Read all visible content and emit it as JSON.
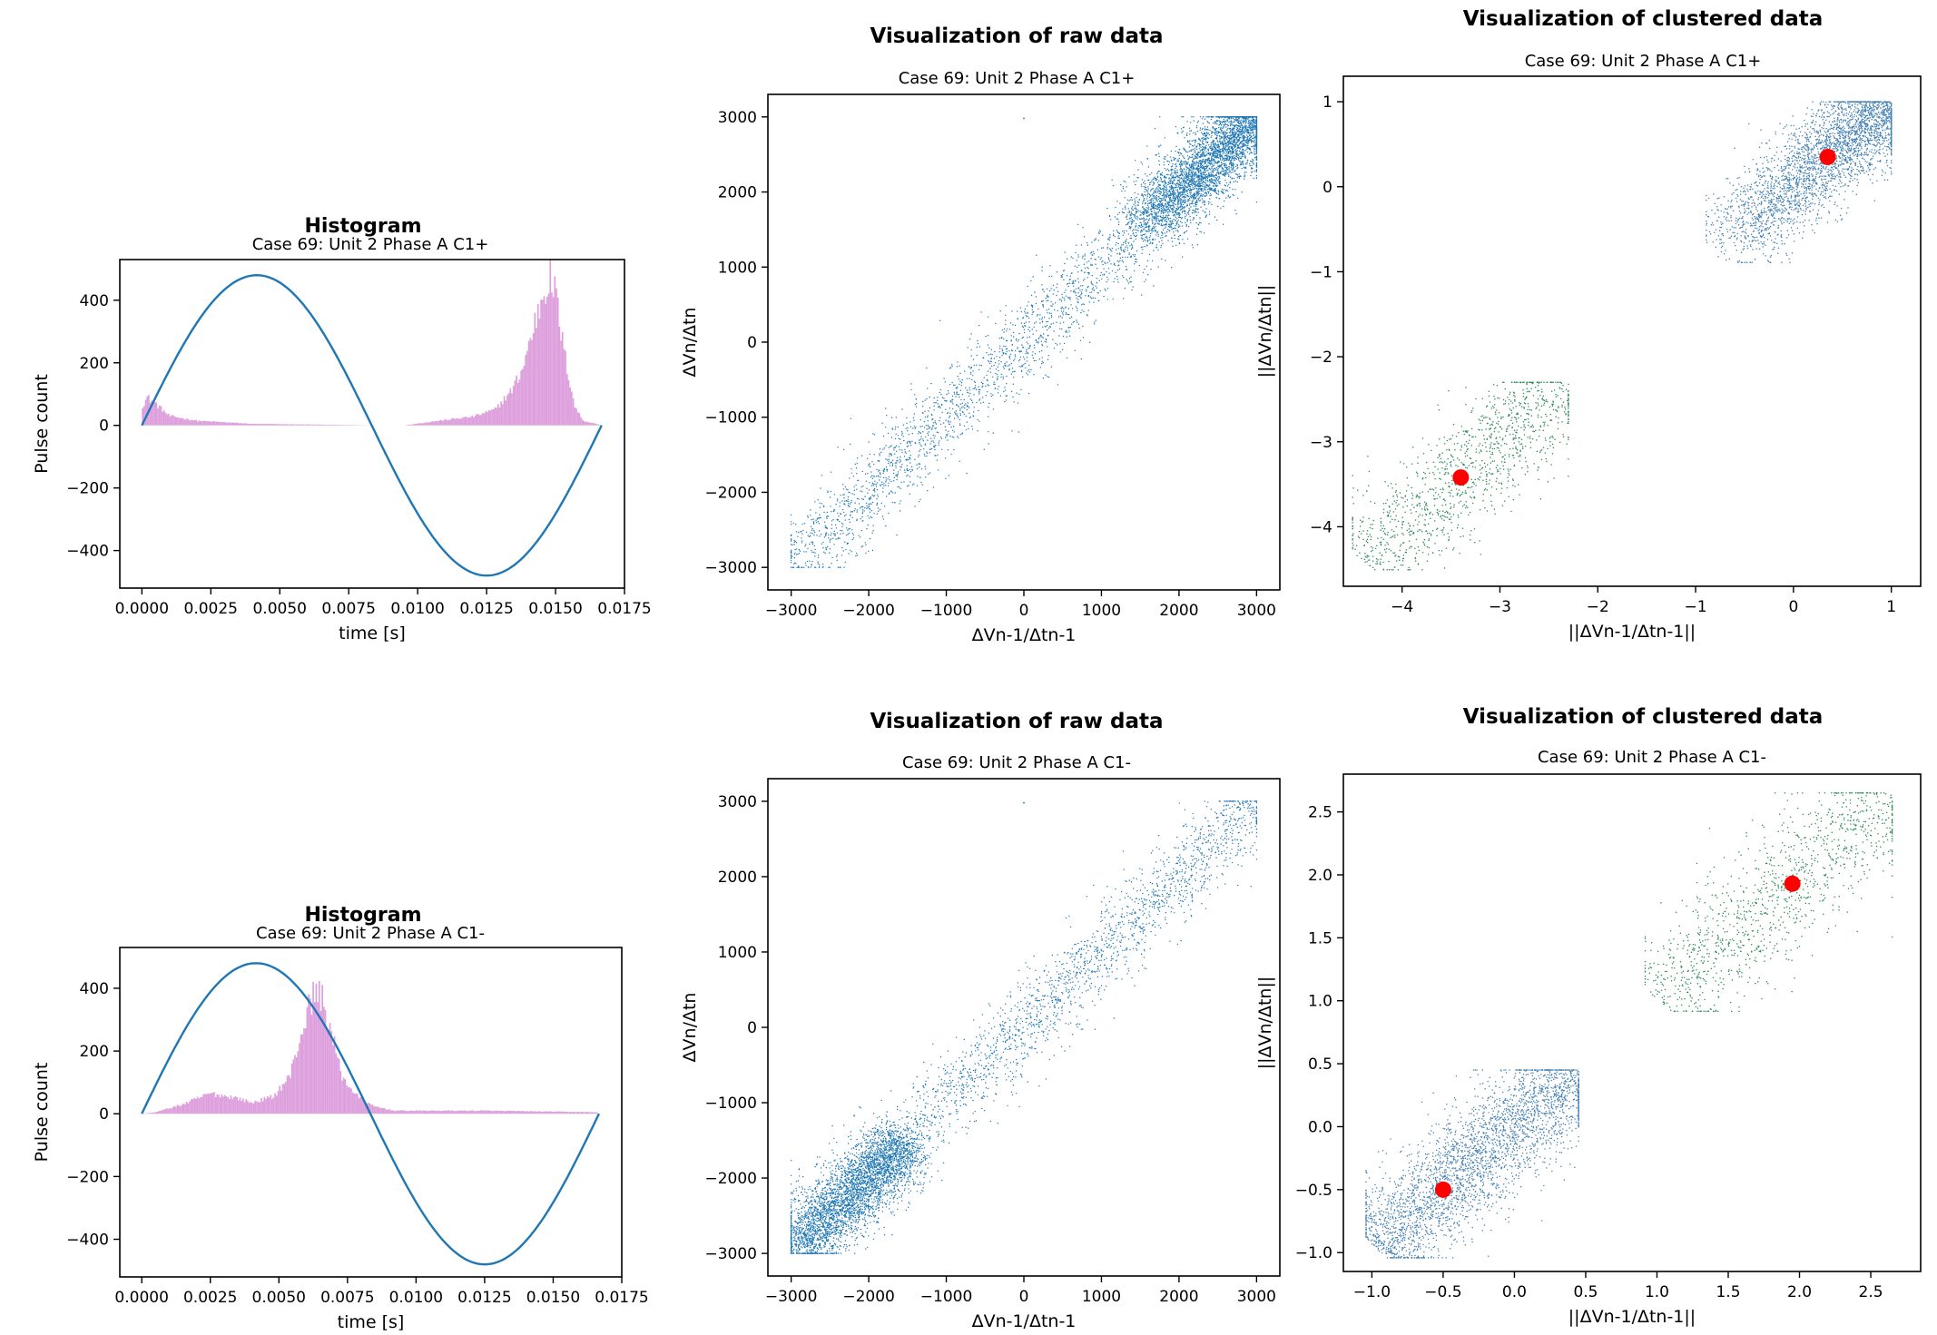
{
  "figure": {
    "row1": {
      "histogram": {
        "title": "Histogram",
        "subtitle": "Case 69: Unit 2 Phase A C1+"
      },
      "raw": {
        "title": "Visualization of raw data",
        "subtitle": "Case 69: Unit 2 Phase A C1+"
      },
      "clustered": {
        "title": "Visualization of clustered data",
        "subtitle": "Case 69: Unit 2 Phase A C1+"
      }
    },
    "row2": {
      "histogram": {
        "title": "Histogram",
        "subtitle": "Case 69: Unit 2 Phase A C1-"
      },
      "raw": {
        "title": "Visualization of raw data",
        "subtitle": "Case 69: Unit 2 Phase A C1-"
      },
      "clustered": {
        "title": "Visualization of clustered data",
        "subtitle": "Case 69: Unit 2 Phase A C1-"
      }
    }
  },
  "colors": {
    "sine": "#1f77b4",
    "histogram": "#dda0dd",
    "raw_points": "#1f77b4",
    "cluster_main": "#4682b4",
    "cluster_secondary": "#2e8b57",
    "centroid": "#ff0000"
  },
  "chart_data": [
    {
      "id": "hist1",
      "type": "histogram",
      "title": "Histogram",
      "subtitle": "Case 69: Unit 2 Phase A C1+",
      "xlabel": "time [s]",
      "ylabel": "Pulse count",
      "xlim": [
        -0.0008,
        0.0175
      ],
      "ylim": [
        -520,
        530
      ],
      "xticks": [
        0.0,
        0.0025,
        0.005,
        0.0075,
        0.01,
        0.0125,
        0.015,
        0.0175
      ],
      "xtick_labels": [
        "0.0000",
        "0.0025",
        "0.0050",
        "0.0075",
        "0.0100",
        "0.0125",
        "0.0150",
        "0.0175"
      ],
      "yticks": [
        -400,
        -200,
        0,
        200,
        400
      ],
      "sine": {
        "amplitude": 480,
        "period": 0.01667,
        "x_start": 0.0,
        "x_end": 0.01667
      },
      "histogram_profile": [
        [
          0.0,
          60
        ],
        [
          0.0002,
          90
        ],
        [
          0.0005,
          70
        ],
        [
          0.001,
          30
        ],
        [
          0.002,
          15
        ],
        [
          0.004,
          5
        ],
        [
          0.007,
          2
        ],
        [
          0.0085,
          0
        ],
        [
          0.0095,
          0
        ],
        [
          0.0105,
          12
        ],
        [
          0.012,
          28
        ],
        [
          0.0128,
          50
        ],
        [
          0.0134,
          110
        ],
        [
          0.0138,
          180
        ],
        [
          0.0142,
          310
        ],
        [
          0.0146,
          440
        ],
        [
          0.0148,
          470
        ],
        [
          0.015,
          420
        ],
        [
          0.0153,
          240
        ],
        [
          0.0157,
          60
        ],
        [
          0.016,
          15
        ],
        [
          0.0166,
          2
        ]
      ]
    },
    {
      "id": "hist2",
      "type": "histogram",
      "title": "Histogram",
      "subtitle": "Case 69: Unit 2 Phase A C1-",
      "xlabel": "time [s]",
      "ylabel": "Pulse count",
      "xlim": [
        -0.0008,
        0.0175
      ],
      "ylim": [
        -520,
        530
      ],
      "xticks": [
        0.0,
        0.0025,
        0.005,
        0.0075,
        0.01,
        0.0125,
        0.015,
        0.0175
      ],
      "xtick_labels": [
        "0.0000",
        "0.0025",
        "0.0050",
        "0.0075",
        "0.0100",
        "0.0125",
        "0.0150",
        "0.0175"
      ],
      "yticks": [
        -400,
        -200,
        0,
        200,
        400
      ],
      "sine": {
        "amplitude": 480,
        "period": 0.01667,
        "x_start": 0.0,
        "x_end": 0.01667
      },
      "histogram_profile": [
        [
          0.0,
          0
        ],
        [
          0.0005,
          5
        ],
        [
          0.0015,
          30
        ],
        [
          0.0025,
          65
        ],
        [
          0.0035,
          50
        ],
        [
          0.004,
          35
        ],
        [
          0.0048,
          55
        ],
        [
          0.0054,
          120
        ],
        [
          0.0058,
          250
        ],
        [
          0.0062,
          370
        ],
        [
          0.0065,
          390
        ],
        [
          0.0069,
          260
        ],
        [
          0.0073,
          120
        ],
        [
          0.0078,
          60
        ],
        [
          0.0084,
          25
        ],
        [
          0.0092,
          10
        ],
        [
          0.0125,
          10
        ],
        [
          0.0166,
          5
        ]
      ]
    },
    {
      "id": "raw1",
      "type": "scatter",
      "title": "Visualization of raw data",
      "subtitle": "Case 69: Unit 2 Phase A C1+",
      "xlabel": "ΔVn-1/Δtn-1",
      "ylabel": "ΔVn/Δtn",
      "xlim": [
        -3300,
        3300
      ],
      "ylim": [
        -3300,
        3300
      ],
      "xticks": [
        -3000,
        -2000,
        -1000,
        0,
        1000,
        2000,
        3000
      ],
      "yticks": [
        -3000,
        -2000,
        -1000,
        0,
        1000,
        2000,
        3000
      ],
      "distribution": {
        "along_diagonal": [
          -3000,
          3000
        ],
        "dense_region": [
          1500,
          3000
        ],
        "spread": 280
      }
    },
    {
      "id": "raw2",
      "type": "scatter",
      "title": "Visualization of raw data",
      "subtitle": "Case 69: Unit 2 Phase A C1-",
      "xlabel": "ΔVn-1/Δtn-1",
      "ylabel": "ΔVn/Δtn",
      "xlim": [
        -3300,
        3300
      ],
      "ylim": [
        -3300,
        3300
      ],
      "xticks": [
        -3000,
        -2000,
        -1000,
        0,
        1000,
        2000,
        3000
      ],
      "yticks": [
        -3000,
        -2000,
        -1000,
        0,
        1000,
        2000,
        3000
      ],
      "distribution": {
        "along_diagonal": [
          -3000,
          3000
        ],
        "dense_region": [
          -3000,
          -1500
        ],
        "spread": 280
      }
    },
    {
      "id": "clust1",
      "type": "scatter",
      "title": "Visualization of clustered data",
      "subtitle": "Case 69: Unit 2 Phase A C1+",
      "xlabel": "||ΔVn-1/Δtn-1||",
      "ylabel": "||ΔVn/Δtn||",
      "xlim": [
        -4.6,
        1.3
      ],
      "ylim": [
        -4.7,
        1.3
      ],
      "xticks": [
        -4,
        -3,
        -2,
        -1,
        0,
        1
      ],
      "yticks": [
        -4,
        -3,
        -2,
        -1,
        0,
        1
      ],
      "clusters": [
        {
          "color": "cluster_main",
          "center": [
            0.35,
            0.35
          ],
          "range": [
            -0.8,
            1.0
          ]
        },
        {
          "color": "cluster_secondary",
          "center": [
            -3.4,
            -3.4
          ],
          "range": [
            -4.4,
            -2.3
          ]
        }
      ],
      "centroids": [
        [
          0.35,
          0.35
        ],
        [
          -3.4,
          -3.42
        ]
      ]
    },
    {
      "id": "clust2",
      "type": "scatter",
      "title": "Visualization of clustered data",
      "subtitle": "Case 69: Unit 2 Phase A C1-",
      "xlabel": "||ΔVn-1/Δtn-1||",
      "ylabel": "||ΔVn/Δtn||",
      "xlim": [
        -1.2,
        2.85
      ],
      "ylim": [
        -1.15,
        2.8
      ],
      "xticks": [
        -1.0,
        -0.5,
        0.0,
        0.5,
        1.0,
        1.5,
        2.0,
        2.5
      ],
      "xtick_labels": [
        "−1.0",
        "−0.5",
        "0.0",
        "0.5",
        "1.0",
        "1.5",
        "2.0",
        "2.5"
      ],
      "yticks": [
        -1.0,
        -0.5,
        0.0,
        0.5,
        1.0,
        1.5,
        2.0,
        2.5
      ],
      "ytick_labels": [
        "−1.0",
        "−0.5",
        "0.0",
        "0.5",
        "1.0",
        "1.5",
        "2.0",
        "2.5"
      ],
      "clusters": [
        {
          "color": "cluster_main",
          "center": [
            -0.5,
            -0.5
          ],
          "range": [
            -0.97,
            0.45
          ]
        },
        {
          "color": "cluster_secondary",
          "center": [
            1.95,
            1.95
          ],
          "range": [
            1.0,
            2.65
          ]
        }
      ],
      "centroids": [
        [
          -0.5,
          -0.5
        ],
        [
          1.95,
          1.93
        ]
      ]
    }
  ]
}
